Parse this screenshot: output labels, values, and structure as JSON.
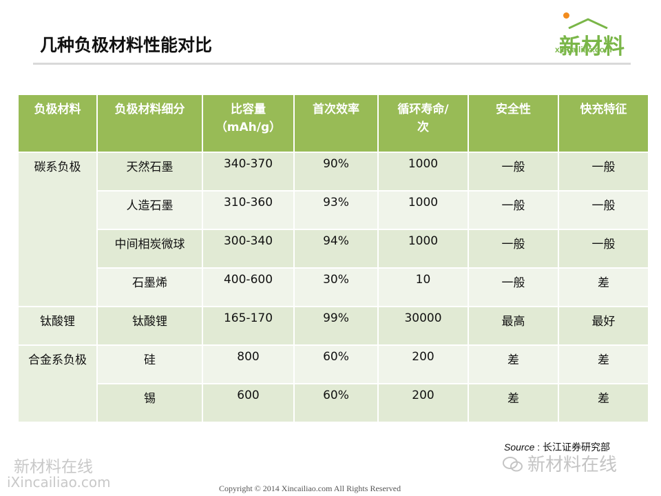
{
  "slide": {
    "title": "几种负极材料性能对比"
  },
  "logo": {
    "mark": "新材料",
    "url": "xincailiao.com",
    "colors": {
      "green": "#7ab648",
      "orange": "#f28c1e"
    }
  },
  "table": {
    "headers": [
      "负极材料",
      "负极材料细分",
      "比容量\n（mAh/g）",
      "首次效率",
      "循环寿命/\n次",
      "安全性",
      "快充特征"
    ],
    "groups": [
      {
        "name": "碳系负极",
        "rows": [
          [
            "天然石墨",
            "340-370",
            "90%",
            "1000",
            "一般",
            "一般"
          ],
          [
            "人造石墨",
            "310-360",
            "93%",
            "1000",
            "一般",
            "一般"
          ],
          [
            "中间相炭微球",
            "300-340",
            "94%",
            "1000",
            "一般",
            "一般"
          ],
          [
            "石墨烯",
            "400-600",
            "30%",
            "10",
            "一般",
            "差"
          ]
        ]
      },
      {
        "name": "钛酸锂",
        "rows": [
          [
            "钛酸锂",
            "165-170",
            "99%",
            "30000",
            "最高",
            "最好"
          ]
        ]
      },
      {
        "name": "合金系负极",
        "rows": [
          [
            "硅",
            "800",
            "60%",
            "200",
            "差",
            "差"
          ],
          [
            "锡",
            "600",
            "60%",
            "200",
            "差",
            "差"
          ]
        ]
      }
    ],
    "colors": {
      "header": "#98bb56",
      "row_a": "#e1ead4",
      "row_b": "#f0f4ea"
    }
  },
  "source": {
    "label": "Source",
    "separator": " : ",
    "text": "长江证券研究部"
  },
  "watermarks": {
    "left_top": "新材料在线",
    "left_bottom": "iXincailiao.com",
    "right": "新材料在线"
  },
  "footer": {
    "copyright": "Copyright © 2014   Xincailiao.com    All Rights Reserved"
  }
}
